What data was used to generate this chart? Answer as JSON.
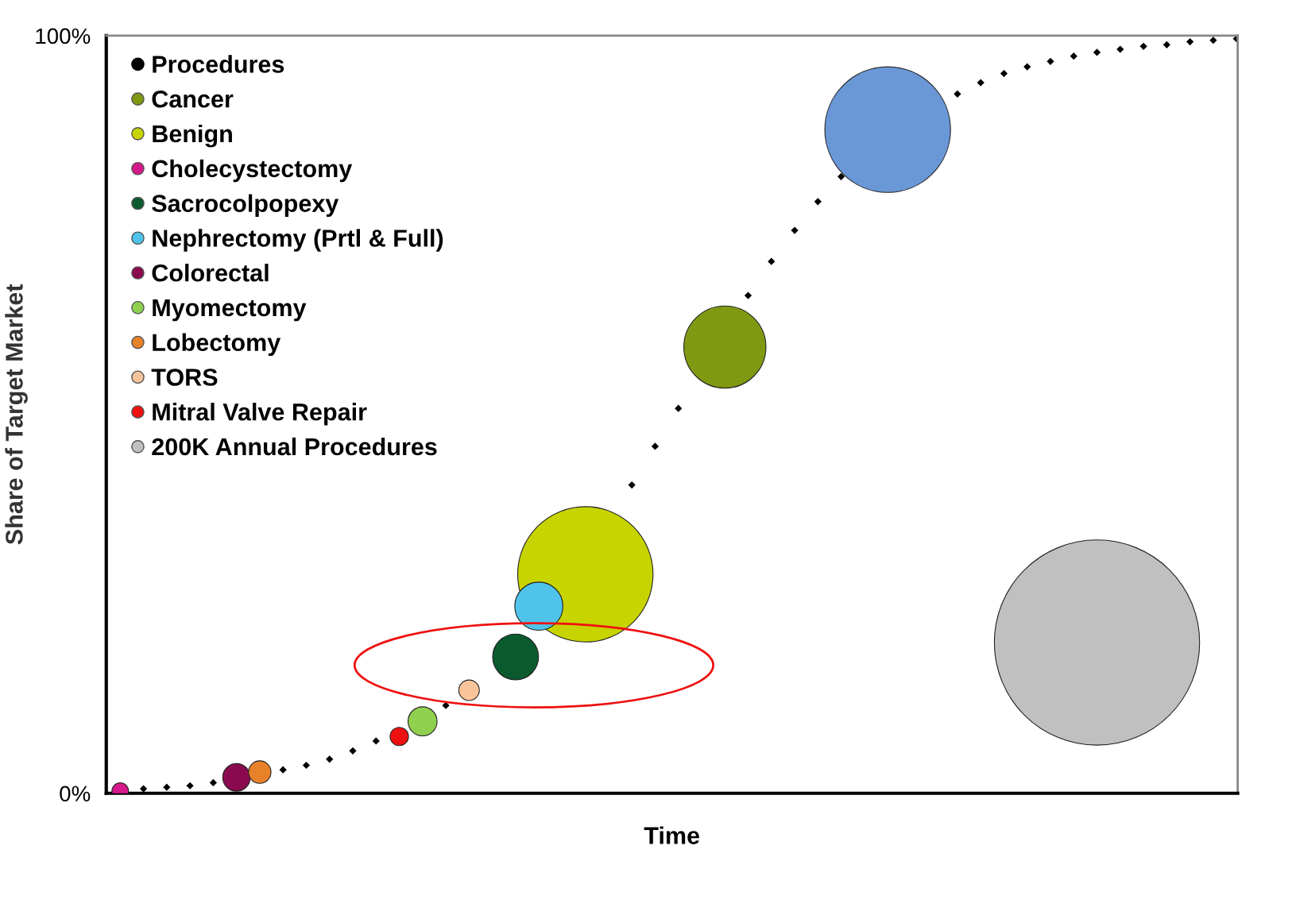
{
  "chart_data": {
    "type": "bubble",
    "xlabel": "Time",
    "ylabel": "Share of Target Market",
    "categories": [
      null,
      null,
      null,
      null,
      null,
      null,
      null,
      null,
      null,
      null,
      null,
      null,
      null,
      null,
      null,
      null,
      null,
      null,
      null,
      null,
      null,
      null,
      null,
      null,
      null,
      null,
      null,
      null,
      null,
      null,
      null,
      null,
      null,
      null,
      null,
      null,
      null,
      null,
      null,
      null,
      null,
      null,
      null,
      null,
      null,
      null,
      null,
      null,
      null
    ],
    "ylim": [
      0,
      100
    ],
    "yticks": [
      {
        "value": 0,
        "label": "0%"
      },
      {
        "value": 100,
        "label": "100%"
      }
    ],
    "grid": false,
    "legend": "top left",
    "tick_labels": "y",
    "series": [
      {
        "name": "Procedures",
        "type": "scatter",
        "color": "#000000",
        "marker": "diamond",
        "values": [
          null,
          0.6,
          0.8,
          1.0,
          1.4,
          null,
          null,
          3.1,
          3.7,
          4.5,
          5.6,
          6.9,
          null,
          null,
          11.6,
          null,
          null,
          null,
          null,
          null,
          null,
          null,
          40.7,
          45.8,
          50.8,
          null,
          null,
          65.7,
          70.2,
          74.3,
          78.1,
          81.4,
          null,
          null,
          null,
          null,
          92.3,
          93.8,
          95.0,
          95.9,
          96.6,
          97.3,
          97.8,
          98.2,
          98.6,
          98.8,
          99.2,
          99.4,
          99.6
        ]
      },
      {
        "color": "#6a97d6",
        "values": [
          null,
          null,
          null,
          null,
          null,
          null,
          null,
          null,
          null,
          null,
          null,
          null,
          null,
          null,
          null,
          null,
          null,
          null,
          null,
          null,
          null,
          null,
          null,
          null,
          null,
          null,
          null,
          null,
          null,
          null,
          null,
          null,
          null,
          87.6,
          null,
          null,
          null,
          null,
          null,
          null,
          null,
          null,
          null,
          null,
          null,
          null,
          null,
          null,
          null
        ],
        "sizes": [
          null,
          null,
          null,
          null,
          null,
          null,
          null,
          null,
          null,
          null,
          null,
          null,
          null,
          null,
          null,
          null,
          null,
          null,
          null,
          null,
          null,
          null,
          null,
          null,
          null,
          null,
          null,
          null,
          null,
          null,
          null,
          null,
          null,
          0.375,
          null,
          null,
          null,
          null,
          null,
          null,
          null,
          null,
          null,
          null,
          null,
          null,
          null,
          null,
          null
        ]
      },
      {
        "name": "Cancer",
        "color": "#7f9a12",
        "values": [
          null,
          null,
          null,
          null,
          null,
          null,
          null,
          null,
          null,
          null,
          null,
          null,
          null,
          null,
          null,
          null,
          null,
          null,
          null,
          null,
          null,
          null,
          null,
          null,
          null,
          null,
          58.9,
          null,
          null,
          null,
          null,
          null,
          null,
          null,
          null,
          null,
          null,
          null,
          null,
          null,
          null,
          null,
          null,
          null,
          null,
          null,
          null,
          null,
          null
        ],
        "sizes": [
          null,
          null,
          null,
          null,
          null,
          null,
          null,
          null,
          null,
          null,
          null,
          null,
          null,
          null,
          null,
          null,
          null,
          null,
          null,
          null,
          null,
          null,
          null,
          null,
          null,
          null,
          0.16,
          null,
          null,
          null,
          null,
          null,
          null,
          null,
          null,
          null,
          null,
          null,
          null,
          null,
          null,
          null,
          null,
          null,
          null,
          null,
          null,
          null,
          null
        ]
      },
      {
        "name": "Benign",
        "color": "#c8d400",
        "values": [
          null,
          null,
          null,
          null,
          null,
          null,
          null,
          null,
          null,
          null,
          null,
          null,
          null,
          null,
          null,
          null,
          null,
          null,
          null,
          null,
          28.9,
          null,
          null,
          null,
          null,
          null,
          null,
          null,
          null,
          null,
          null,
          null,
          null,
          null,
          null,
          null,
          null,
          null,
          null,
          null,
          null,
          null,
          null,
          null,
          null,
          null,
          null,
          null,
          null
        ],
        "sizes": [
          null,
          null,
          null,
          null,
          null,
          null,
          null,
          null,
          null,
          null,
          null,
          null,
          null,
          null,
          null,
          null,
          null,
          null,
          null,
          null,
          0.435,
          null,
          null,
          null,
          null,
          null,
          null,
          null,
          null,
          null,
          null,
          null,
          null,
          null,
          null,
          null,
          null,
          null,
          null,
          null,
          null,
          null,
          null,
          null,
          null,
          null,
          null,
          null,
          null
        ]
      },
      {
        "name": "Cholecystectomy",
        "color": "#d6198a",
        "values": [
          0.3,
          null,
          null,
          null,
          null,
          null,
          null,
          null,
          null,
          null,
          null,
          null,
          null,
          null,
          null,
          null,
          null,
          null,
          null,
          null,
          null,
          null,
          null,
          null,
          null,
          null,
          null,
          null,
          null,
          null,
          null,
          null,
          null,
          null,
          null,
          null,
          null,
          null,
          null,
          null,
          null,
          null,
          null,
          null,
          null,
          null,
          null,
          null,
          null
        ],
        "sizes": [
          0.0065,
          null,
          null,
          null,
          null,
          null,
          null,
          null,
          null,
          null,
          null,
          null,
          null,
          null,
          null,
          null,
          null,
          null,
          null,
          null,
          null,
          null,
          null,
          null,
          null,
          null,
          null,
          null,
          null,
          null,
          null,
          null,
          null,
          null,
          null,
          null,
          null,
          null,
          null,
          null,
          null,
          null,
          null,
          null,
          null,
          null,
          null,
          null,
          null
        ]
      },
      {
        "name": "Sacrocolpopexy",
        "color": "#0a5a2e",
        "values": [
          null,
          null,
          null,
          null,
          null,
          null,
          null,
          null,
          null,
          null,
          null,
          null,
          null,
          null,
          null,
          null,
          null,
          18.0,
          null,
          null,
          null,
          null,
          null,
          null,
          null,
          null,
          null,
          null,
          null,
          null,
          null,
          null,
          null,
          null,
          null,
          null,
          null,
          null,
          null,
          null,
          null,
          null,
          null,
          null,
          null,
          null,
          null,
          null,
          null
        ],
        "sizes": [
          null,
          null,
          null,
          null,
          null,
          null,
          null,
          null,
          null,
          null,
          null,
          null,
          null,
          null,
          null,
          null,
          null,
          0.05,
          null,
          null,
          null,
          null,
          null,
          null,
          null,
          null,
          null,
          null,
          null,
          null,
          null,
          null,
          null,
          null,
          null,
          null,
          null,
          null,
          null,
          null,
          null,
          null,
          null,
          null,
          null,
          null,
          null,
          null,
          null
        ]
      },
      {
        "name": "Nephrectomy (Prtl & Full)",
        "color": "#4fc3ea",
        "values": [
          null,
          null,
          null,
          null,
          null,
          null,
          null,
          null,
          null,
          null,
          null,
          null,
          null,
          null,
          null,
          null,
          null,
          null,
          24.7,
          null,
          null,
          null,
          null,
          null,
          null,
          null,
          null,
          null,
          null,
          null,
          null,
          null,
          null,
          null,
          null,
          null,
          null,
          null,
          null,
          null,
          null,
          null,
          null,
          null,
          null,
          null,
          null,
          null,
          null
        ],
        "sizes": [
          null,
          null,
          null,
          null,
          null,
          null,
          null,
          null,
          null,
          null,
          null,
          null,
          null,
          null,
          null,
          null,
          null,
          null,
          0.055,
          null,
          null,
          null,
          null,
          null,
          null,
          null,
          null,
          null,
          null,
          null,
          null,
          null,
          null,
          null,
          null,
          null,
          null,
          null,
          null,
          null,
          null,
          null,
          null,
          null,
          null,
          null,
          null,
          null,
          null
        ]
      },
      {
        "name": "Colorectal",
        "color": "#8b0a4f",
        "values": [
          null,
          null,
          null,
          null,
          null,
          2.1,
          null,
          null,
          null,
          null,
          null,
          null,
          null,
          null,
          null,
          null,
          null,
          null,
          null,
          null,
          null,
          null,
          null,
          null,
          null,
          null,
          null,
          null,
          null,
          null,
          null,
          null,
          null,
          null,
          null,
          null,
          null,
          null,
          null,
          null,
          null,
          null,
          null,
          null,
          null,
          null,
          null,
          null,
          null
        ],
        "sizes": [
          null,
          null,
          null,
          null,
          null,
          0.018,
          null,
          null,
          null,
          null,
          null,
          null,
          null,
          null,
          null,
          null,
          null,
          null,
          null,
          null,
          null,
          null,
          null,
          null,
          null,
          null,
          null,
          null,
          null,
          null,
          null,
          null,
          null,
          null,
          null,
          null,
          null,
          null,
          null,
          null,
          null,
          null,
          null,
          null,
          null,
          null,
          null,
          null,
          null
        ]
      },
      {
        "name": "Myomectomy",
        "color": "#8fd14f",
        "values": [
          null,
          null,
          null,
          null,
          null,
          null,
          null,
          null,
          null,
          null,
          null,
          null,
          null,
          9.5,
          null,
          null,
          null,
          null,
          null,
          null,
          null,
          null,
          null,
          null,
          null,
          null,
          null,
          null,
          null,
          null,
          null,
          null,
          null,
          null,
          null,
          null,
          null,
          null,
          null,
          null,
          null,
          null,
          null,
          null,
          null,
          null,
          null,
          null,
          null
        ],
        "sizes": [
          null,
          null,
          null,
          null,
          null,
          null,
          null,
          null,
          null,
          null,
          null,
          null,
          null,
          0.02,
          null,
          null,
          null,
          null,
          null,
          null,
          null,
          null,
          null,
          null,
          null,
          null,
          null,
          null,
          null,
          null,
          null,
          null,
          null,
          null,
          null,
          null,
          null,
          null,
          null,
          null,
          null,
          null,
          null,
          null,
          null,
          null,
          null,
          null,
          null
        ]
      },
      {
        "name": "Lobectomy",
        "color": "#e8822a",
        "values": [
          null,
          null,
          null,
          null,
          null,
          null,
          2.8,
          null,
          null,
          null,
          null,
          null,
          null,
          null,
          null,
          null,
          null,
          null,
          null,
          null,
          null,
          null,
          null,
          null,
          null,
          null,
          null,
          null,
          null,
          null,
          null,
          null,
          null,
          null,
          null,
          null,
          null,
          null,
          null,
          null,
          null,
          null,
          null,
          null,
          null,
          null,
          null,
          null,
          null
        ],
        "sizes": [
          null,
          null,
          null,
          null,
          null,
          null,
          0.012,
          null,
          null,
          null,
          null,
          null,
          null,
          null,
          null,
          null,
          null,
          null,
          null,
          null,
          null,
          null,
          null,
          null,
          null,
          null,
          null,
          null,
          null,
          null,
          null,
          null,
          null,
          null,
          null,
          null,
          null,
          null,
          null,
          null,
          null,
          null,
          null,
          null,
          null,
          null,
          null,
          null,
          null
        ]
      },
      {
        "name": "TORS",
        "color": "#f9c49a",
        "values": [
          null,
          null,
          null,
          null,
          null,
          null,
          null,
          null,
          null,
          null,
          null,
          null,
          null,
          null,
          null,
          13.6,
          null,
          null,
          null,
          null,
          null,
          null,
          null,
          null,
          null,
          null,
          null,
          null,
          null,
          null,
          null,
          null,
          null,
          null,
          null,
          null,
          null,
          null,
          null,
          null,
          null,
          null,
          null,
          null,
          null,
          null,
          null,
          null,
          null
        ],
        "sizes": [
          null,
          null,
          null,
          null,
          null,
          null,
          null,
          null,
          null,
          null,
          null,
          null,
          null,
          null,
          null,
          0.01,
          null,
          null,
          null,
          null,
          null,
          null,
          null,
          null,
          null,
          null,
          null,
          null,
          null,
          null,
          null,
          null,
          null,
          null,
          null,
          null,
          null,
          null,
          null,
          null,
          null,
          null,
          null,
          null,
          null,
          null,
          null,
          null,
          null
        ]
      },
      {
        "name": "Mitral Valve Repair",
        "color": "#ee1111",
        "values": [
          null,
          null,
          null,
          null,
          null,
          null,
          null,
          null,
          null,
          null,
          null,
          null,
          7.5,
          null,
          null,
          null,
          null,
          null,
          null,
          null,
          null,
          null,
          null,
          null,
          null,
          null,
          null,
          null,
          null,
          null,
          null,
          null,
          null,
          null,
          null,
          null,
          null,
          null,
          null,
          null,
          null,
          null,
          null,
          null,
          null,
          null,
          null,
          null,
          null
        ],
        "sizes": [
          null,
          null,
          null,
          null,
          null,
          null,
          null,
          null,
          null,
          null,
          null,
          null,
          0.008,
          null,
          null,
          null,
          null,
          null,
          null,
          null,
          null,
          null,
          null,
          null,
          null,
          null,
          null,
          null,
          null,
          null,
          null,
          null,
          null,
          null,
          null,
          null,
          null,
          null,
          null,
          null,
          null,
          null,
          null,
          null,
          null,
          null,
          null,
          null,
          null
        ]
      },
      {
        "name": "200K Annual Procedures",
        "color": "#c0c0c0",
        "values": [
          null,
          null,
          null,
          null,
          null,
          null,
          null,
          null,
          null,
          null,
          null,
          null,
          null,
          null,
          null,
          null,
          null,
          null,
          null,
          null,
          null,
          null,
          null,
          null,
          null,
          null,
          null,
          null,
          null,
          null,
          null,
          null,
          null,
          null,
          null,
          null,
          null,
          null,
          null,
          null,
          null,
          null,
          19.9,
          null,
          null,
          null,
          null,
          null,
          null
        ],
        "sizes": [
          null,
          null,
          null,
          null,
          null,
          null,
          null,
          null,
          null,
          null,
          null,
          null,
          null,
          null,
          null,
          null,
          null,
          null,
          null,
          null,
          null,
          null,
          null,
          null,
          null,
          null,
          null,
          null,
          null,
          null,
          null,
          null,
          null,
          null,
          null,
          null,
          null,
          null,
          null,
          null,
          null,
          null,
          1,
          null,
          null,
          null,
          null,
          null,
          null
        ]
      }
    ]
  }
}
